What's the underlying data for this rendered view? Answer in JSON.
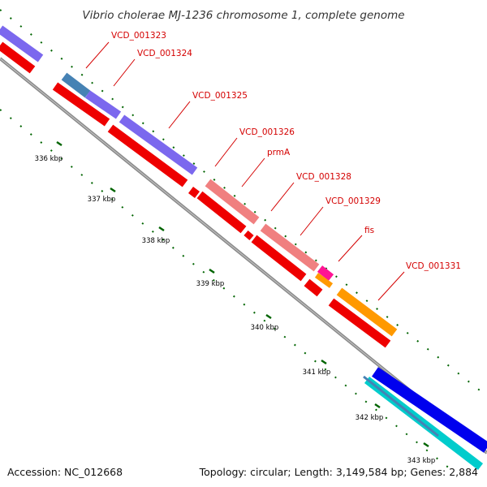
{
  "title": "Vibrio cholerae MJ-1236 chromosome 1, complete genome",
  "footer": {
    "accession": "Accession: NC_012668",
    "summary": "Topology: circular; Length: 3,149,584 bp; Genes: 2,884"
  },
  "colors": {
    "cds_red": "#ee0000",
    "purple": "#7b68ee",
    "steel_blue": "#4682b4",
    "salmon": "#f08080",
    "orange": "#ff9900",
    "magenta": "#ff1493",
    "blue": "#0000ee",
    "cyan": "#00cccc",
    "backbone": "#808080",
    "tick_green": "#006400",
    "label_red": "#d40000"
  },
  "gene_labels": [
    {
      "id": "lbl-1323",
      "text": "VCD_001323"
    },
    {
      "id": "lbl-1324",
      "text": "VCD_001324"
    },
    {
      "id": "lbl-1325",
      "text": "VCD_001325"
    },
    {
      "id": "lbl-1326",
      "text": "VCD_001326"
    },
    {
      "id": "lbl-prmA",
      "text": "prmA"
    },
    {
      "id": "lbl-1328",
      "text": "VCD_001328"
    },
    {
      "id": "lbl-1329",
      "text": "VCD_001329"
    },
    {
      "id": "lbl-fis",
      "text": "fis"
    },
    {
      "id": "lbl-1331",
      "text": "VCD_001331"
    }
  ],
  "kbp_ticks": [
    "336 kbp",
    "337 kbp",
    "338 kbp",
    "339 kbp",
    "340 kbp",
    "341 kbp",
    "342 kbp",
    "343 kbp"
  ]
}
